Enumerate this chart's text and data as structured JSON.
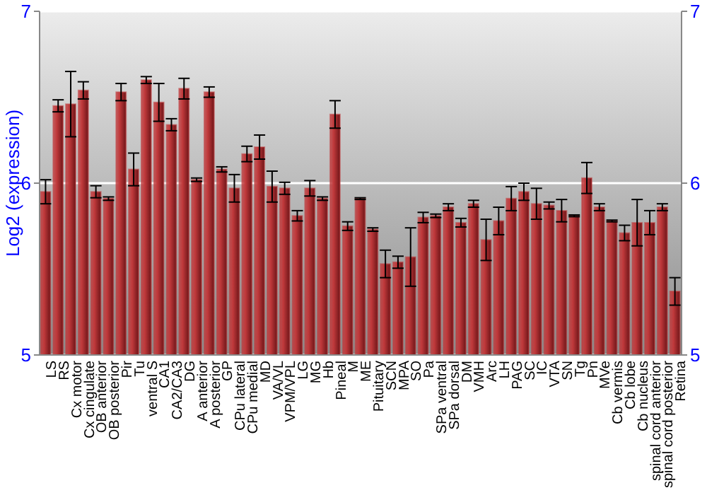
{
  "chart_data": {
    "type": "bar",
    "ylabel": "Log2 (expression)",
    "categories": [
      "LS",
      "RS",
      "Cx motor",
      "Cx cingulate",
      "OB anterior",
      "OB posterior",
      "Pir",
      "Tu",
      "ventral S",
      "CA1",
      "CA2/CA3",
      "DG",
      "A anterior",
      "A posterior",
      "GP",
      "CPu lateral",
      "CPu medial",
      "MD",
      "VA/VL",
      "VPM/VPL",
      "LG",
      "MG",
      "Hb",
      "Pineal",
      "M",
      "ME",
      "Pituitary",
      "SCN",
      "MPA",
      "SO",
      "Pa",
      "SPa ventral",
      "SPa dorsal",
      "DM",
      "VMH",
      "Arc",
      "LH",
      "PAG",
      "SC",
      "IC",
      "VTA",
      "SN",
      "Tg",
      "Pn",
      "MVe",
      "Cb vermis",
      "Cb lobe",
      "Cb nucleus",
      "spinal cord anterior",
      "spinal cord posterior",
      "Retina"
    ],
    "values": [
      5.95,
      6.45,
      6.46,
      6.54,
      5.95,
      5.91,
      6.53,
      6.08,
      6.6,
      6.47,
      6.34,
      6.55,
      6.02,
      6.53,
      6.08,
      5.97,
      6.17,
      6.21,
      5.98,
      5.97,
      5.81,
      5.97,
      5.91,
      6.4,
      5.75,
      5.91,
      5.73,
      5.53,
      5.54,
      5.57,
      5.8,
      5.81,
      5.86,
      5.77,
      5.88,
      5.67,
      5.78,
      5.91,
      5.95,
      5.88,
      5.87,
      5.84,
      5.81,
      6.03,
      5.86,
      5.78,
      5.71,
      5.77,
      5.77,
      5.86,
      5.37
    ],
    "errors": [
      0.07,
      0.035,
      0.19,
      0.05,
      0.035,
      0.01,
      0.05,
      0.095,
      0.02,
      0.11,
      0.035,
      0.06,
      0.01,
      0.03,
      0.015,
      0.08,
      0.045,
      0.07,
      0.09,
      0.035,
      0.03,
      0.045,
      0.01,
      0.08,
      0.025,
      0.005,
      0.01,
      0.08,
      0.035,
      0.17,
      0.03,
      0.01,
      0.02,
      0.025,
      0.02,
      0.12,
      0.08,
      0.07,
      0.05,
      0.09,
      0.02,
      0.065,
      0.005,
      0.09,
      0.02,
      0.005,
      0.045,
      0.135,
      0.07,
      0.02,
      0.08
    ],
    "color": "#c0393b",
    "ylim": [
      5,
      7
    ],
    "yticks": [
      5,
      6,
      7
    ],
    "y2lim": [
      5,
      7
    ],
    "y2ticks": [
      5,
      6,
      7
    ],
    "grid": "y"
  }
}
